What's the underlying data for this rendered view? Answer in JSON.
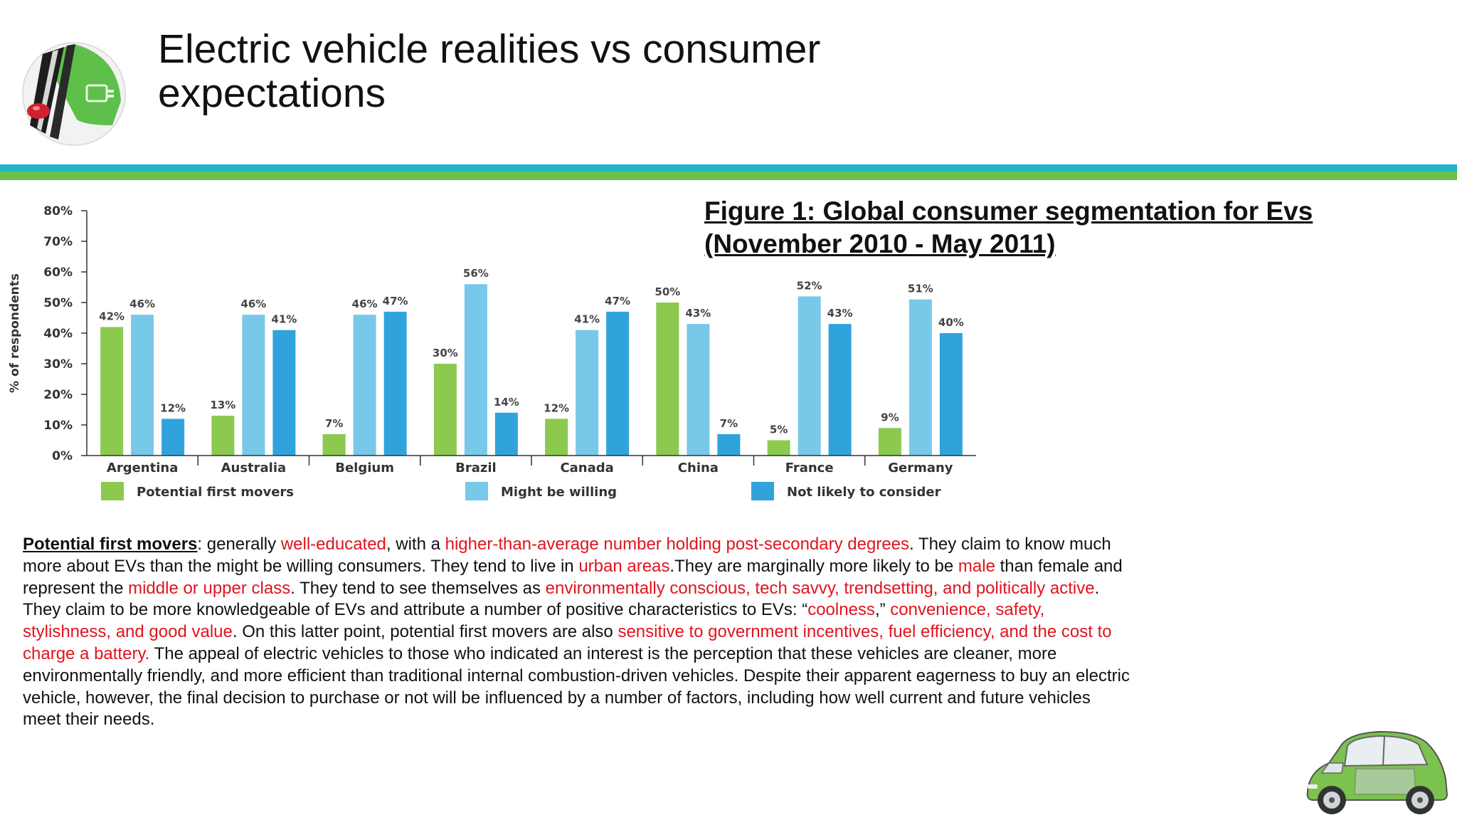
{
  "slide": {
    "title": "Electric vehicle realities vs consumer expectations",
    "figure_caption_line1": "Figure 1: Global consumer segmentation for Evs",
    "figure_caption_line2": "(November 2010 - May 2011)"
  },
  "colors": {
    "teal_band": "#1fb5c6",
    "green_band": "#6cc04a",
    "highlight_red": "#e0141e",
    "series_first_movers": "#8cc94f",
    "series_might_be_willing": "#78c8ea",
    "series_not_likely": "#30a3dc"
  },
  "icons": {
    "logo": "ev-plug-logo-icon",
    "car": "green-electric-car-icon"
  },
  "chart_data": {
    "type": "bar",
    "ylabel": "% of respondents",
    "ylim": [
      0,
      80
    ],
    "yticks": [
      "0%",
      "10%",
      "20%",
      "30%",
      "40%",
      "50%",
      "60%",
      "70%",
      "80%"
    ],
    "categories": [
      "Argentina",
      "Australia",
      "Belgium",
      "Brazil",
      "Canada",
      "China",
      "France",
      "Germany"
    ],
    "series": [
      {
        "name": "Potential first movers",
        "color": "#8cc94f",
        "values": [
          42,
          13,
          7,
          30,
          12,
          50,
          5,
          9
        ]
      },
      {
        "name": "Might be willing",
        "color": "#78c8ea",
        "values": [
          46,
          46,
          46,
          56,
          41,
          43,
          52,
          51
        ]
      },
      {
        "name": "Not likely to consider",
        "color": "#30a3dc",
        "values": [
          12,
          41,
          47,
          14,
          47,
          7,
          43,
          40
        ]
      }
    ],
    "legend_position": "bottom",
    "grid": false
  },
  "paragraph": {
    "segments": [
      {
        "text": "Potential first movers",
        "style": "lead"
      },
      {
        "text": ": generally ",
        "style": "plain"
      },
      {
        "text": "well-educated",
        "style": "hl"
      },
      {
        "text": ", with a ",
        "style": "plain"
      },
      {
        "text": "higher-than-average number holding post-secondary degrees",
        "style": "hl"
      },
      {
        "text": ". They claim to know much more about EVs than the might be willing consumers. They tend to live in ",
        "style": "plain"
      },
      {
        "text": "urban areas",
        "style": "hl"
      },
      {
        "text": ".They are marginally more likely to be ",
        "style": "plain"
      },
      {
        "text": "male",
        "style": "hl"
      },
      {
        "text": " than female and represent the ",
        "style": "plain"
      },
      {
        "text": "middle or upper class",
        "style": "hl"
      },
      {
        "text": ". They tend to see themselves as ",
        "style": "plain"
      },
      {
        "text": "environmentally conscious, tech savvy, trendsetting, and politically active",
        "style": "hl"
      },
      {
        "text": ". They claim to be more knowledgeable of EVs and attribute a number of positive characteristics to EVs: “",
        "style": "plain"
      },
      {
        "text": "coolness",
        "style": "hl"
      },
      {
        "text": ",” ",
        "style": "plain"
      },
      {
        "text": "convenience, safety, stylishness, and good value",
        "style": "hl"
      },
      {
        "text": ". On this latter point, potential first movers are also ",
        "style": "plain"
      },
      {
        "text": "sensitive to government incentives, fuel efficiency, and the cost to charge a battery.",
        "style": "hl"
      },
      {
        "text": " The appeal of electric vehicles to those who indicated an interest is the perception that these vehicles are cleaner, more environmentally friendly, and more efficient than traditional internal combustion-driven vehicles. Despite their apparent eagerness to buy an electric vehicle, however, the final decision to purchase or not will be influenced by a number of factors, including how well current and future vehicles meet their needs.",
        "style": "plain"
      }
    ]
  }
}
